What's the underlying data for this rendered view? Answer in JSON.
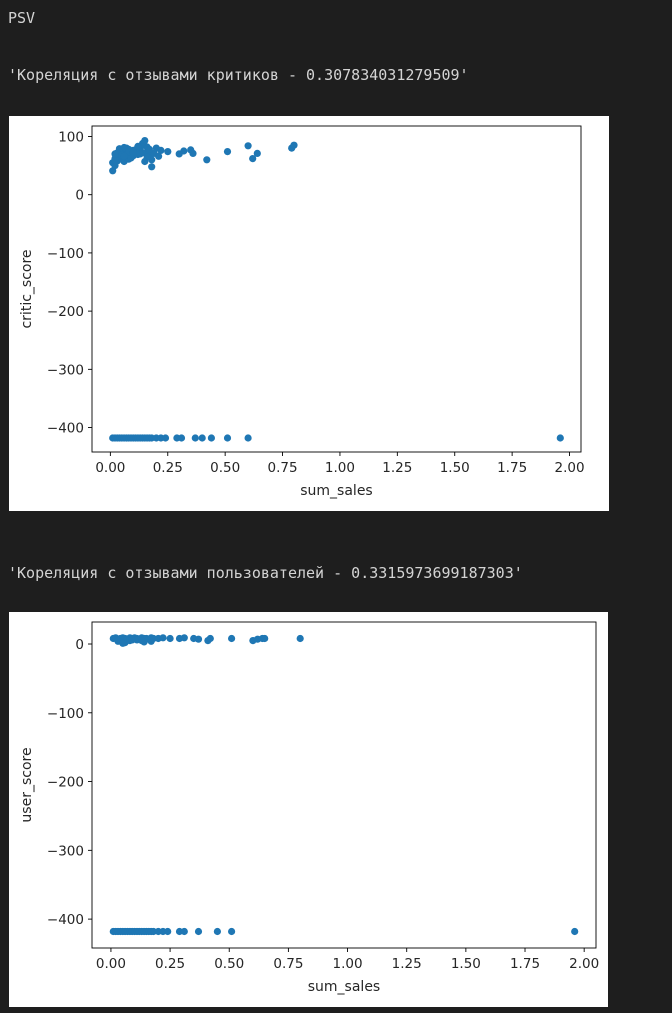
{
  "header": "PSV",
  "corr_critic_text": "'Кореляция с отзывами критиков - 0.307834031279509'",
  "corr_user_text": "'Кореляция с отзывами пользователей - 0.3315973699187303'",
  "chart_data": [
    {
      "type": "scatter",
      "xlabel": "sum_sales",
      "ylabel": "critic_score",
      "xlim": [
        -0.08,
        2.05
      ],
      "ylim": [
        -442,
        118
      ],
      "xticks": [
        0.0,
        0.25,
        0.5,
        0.75,
        1.0,
        1.25,
        1.5,
        1.75,
        2.0
      ],
      "xtick_labels": [
        "0.00",
        "0.25",
        "0.50",
        "0.75",
        "1.00",
        "1.25",
        "1.50",
        "1.75",
        "2.00"
      ],
      "yticks": [
        100,
        0,
        -100,
        -200,
        -300,
        -400
      ],
      "ytick_labels": [
        "100",
        "0",
        "−100",
        "−200",
        "−300",
        "−400"
      ],
      "marker_color": "#1f77b4",
      "x": [
        0.01,
        0.02,
        0.03,
        0.04,
        0.05,
        0.06,
        0.07,
        0.08,
        0.09,
        0.1,
        0.11,
        0.12,
        0.13,
        0.14,
        0.15,
        0.16,
        0.17,
        0.18,
        0.2,
        0.22,
        0.25,
        0.3,
        0.32,
        0.35,
        0.36,
        0.42,
        0.51,
        0.6,
        0.62,
        0.64,
        0.79,
        0.8,
        0.01,
        0.02,
        0.03,
        0.04,
        0.05,
        0.06,
        0.07,
        0.08,
        0.1,
        0.12,
        0.14,
        0.15,
        0.17,
        0.19,
        0.21,
        0.02,
        0.04,
        0.06,
        0.09,
        0.11,
        0.13,
        0.16,
        0.18,
        0.03,
        0.05,
        0.08,
        0.12,
        0.17,
        0.02,
        0.06,
        0.1,
        0.15,
        0.01,
        0.02,
        0.03,
        0.04,
        0.05,
        0.06,
        0.07,
        0.08,
        0.09,
        0.1,
        0.11,
        0.12,
        0.13,
        0.14,
        0.15,
        0.16,
        0.17,
        0.18,
        0.2,
        0.22,
        0.24,
        0.29,
        0.31,
        0.37,
        0.4,
        0.44,
        0.51,
        0.6,
        1.96
      ],
      "y": [
        41,
        62,
        68,
        70,
        73,
        75,
        80,
        78,
        72,
        76,
        74,
        70,
        79,
        85,
        72,
        82,
        68,
        60,
        80,
        76,
        74,
        70,
        75,
        77,
        71,
        60,
        74,
        84,
        62,
        71,
        80,
        85,
        55,
        50,
        58,
        63,
        66,
        57,
        64,
        61,
        67,
        69,
        88,
        93,
        74,
        71,
        66,
        59,
        79,
        81,
        63,
        77,
        70,
        65,
        48,
        72,
        68,
        74,
        83,
        78,
        70,
        66,
        73,
        57,
        -418,
        -418,
        -418,
        -418,
        -418,
        -418,
        -418,
        -418,
        -418,
        -418,
        -418,
        -418,
        -418,
        -418,
        -418,
        -418,
        -418,
        -418,
        -418,
        -418,
        -418,
        -418,
        -418,
        -418,
        -418,
        -418,
        -418,
        -418,
        -418
      ]
    },
    {
      "type": "scatter",
      "xlabel": "sum_sales",
      "ylabel": "user_score",
      "xlim": [
        -0.08,
        2.05
      ],
      "ylim": [
        -442,
        32
      ],
      "xticks": [
        0.0,
        0.25,
        0.5,
        0.75,
        1.0,
        1.25,
        1.5,
        1.75,
        2.0
      ],
      "xtick_labels": [
        "0.00",
        "0.25",
        "0.50",
        "0.75",
        "1.00",
        "1.25",
        "1.50",
        "1.75",
        "2.00"
      ],
      "yticks": [
        0,
        -100,
        -200,
        -300,
        -400
      ],
      "ytick_labels": [
        "0",
        "−100",
        "−200",
        "−300",
        "−400"
      ],
      "marker_color": "#1f77b4",
      "x": [
        0.01,
        0.02,
        0.03,
        0.04,
        0.05,
        0.06,
        0.07,
        0.08,
        0.09,
        0.1,
        0.11,
        0.12,
        0.13,
        0.14,
        0.15,
        0.16,
        0.17,
        0.18,
        0.2,
        0.22,
        0.25,
        0.29,
        0.31,
        0.35,
        0.37,
        0.41,
        0.42,
        0.51,
        0.6,
        0.62,
        0.64,
        0.65,
        0.8,
        0.03,
        0.06,
        0.08,
        0.11,
        0.14,
        0.17,
        0.05,
        0.09,
        0.13,
        0.01,
        0.02,
        0.03,
        0.04,
        0.05,
        0.06,
        0.07,
        0.08,
        0.09,
        0.1,
        0.11,
        0.12,
        0.13,
        0.14,
        0.15,
        0.16,
        0.17,
        0.18,
        0.2,
        0.22,
        0.24,
        0.29,
        0.31,
        0.37,
        0.45,
        0.51,
        1.96
      ],
      "y": [
        8,
        9,
        7,
        8,
        9,
        8,
        7,
        9,
        8,
        9,
        8,
        7,
        9,
        8,
        8,
        7,
        9,
        8,
        8,
        9,
        8,
        8,
        9,
        8,
        7,
        5,
        8,
        8,
        5,
        7,
        8,
        8,
        8,
        4,
        2,
        5,
        6,
        3,
        4,
        1,
        6,
        5,
        -418,
        -418,
        -418,
        -418,
        -418,
        -418,
        -418,
        -418,
        -418,
        -418,
        -418,
        -418,
        -418,
        -418,
        -418,
        -418,
        -418,
        -418,
        -418,
        -418,
        -418,
        -418,
        -418,
        -418,
        -418,
        -418,
        -418
      ]
    }
  ]
}
